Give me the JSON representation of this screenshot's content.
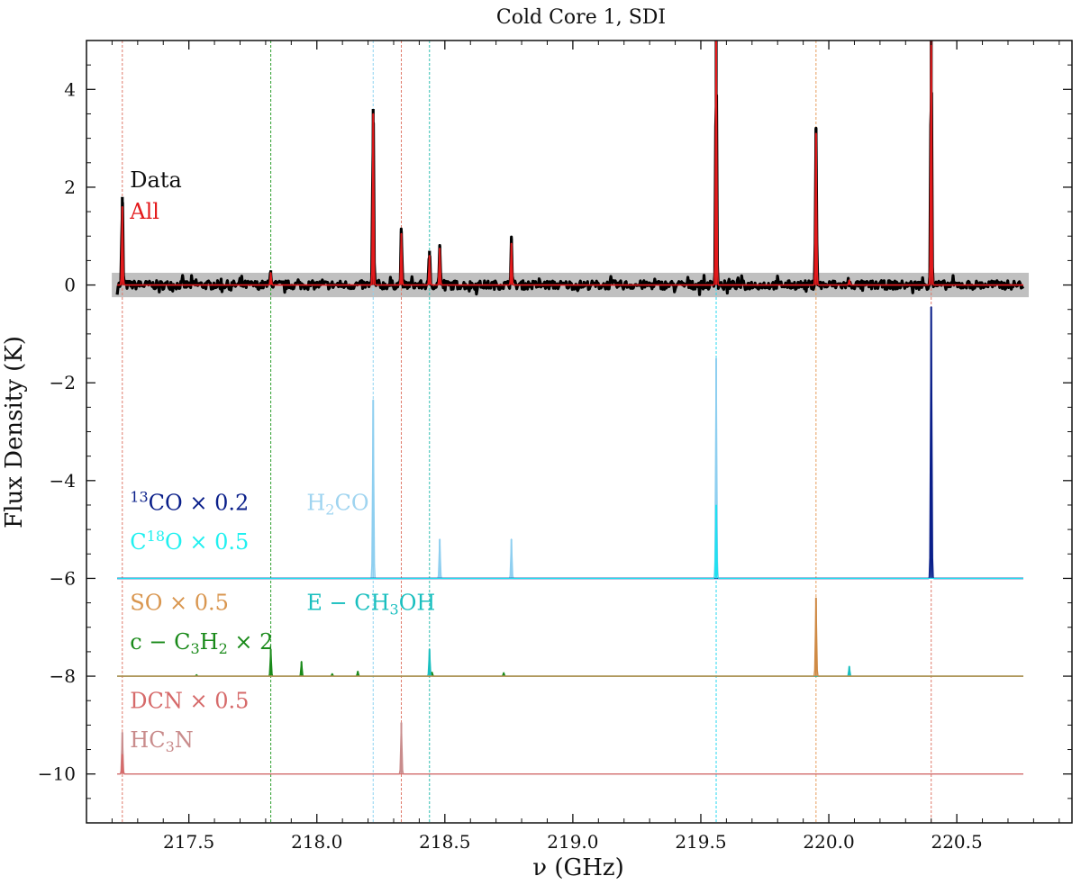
{
  "chart_data": {
    "type": "line",
    "title": "Cold Core 1, SDI",
    "xlabel": "ν (GHz)",
    "ylabel": "Flux Density (K)",
    "xlim": [
      217.1,
      220.95
    ],
    "ylim": [
      -11,
      5
    ],
    "x_ticks": [
      217.5,
      218.0,
      218.5,
      219.0,
      219.5,
      220.0,
      220.5
    ],
    "x_tick_labels": [
      "217.5",
      "218.0",
      "218.5",
      "219.0",
      "219.5",
      "220.0",
      "220.5"
    ],
    "y_ticks": [
      4,
      2,
      0,
      -2,
      -4,
      -6,
      -8,
      -10
    ],
    "y_tick_labels": [
      "4",
      "2",
      "0",
      "−2",
      "−4",
      "−6",
      "−8",
      "−10"
    ],
    "x_range_data": [
      217.22,
      220.76
    ],
    "noise_band": {
      "y": [
        -0.25,
        0.25
      ],
      "color": "#c0c0c0"
    },
    "vlines": [
      {
        "x": 217.24,
        "color": "#e07a6a"
      },
      {
        "x": 217.82,
        "color": "#2ca02c"
      },
      {
        "x": 218.22,
        "color": "#8fd3f0"
      },
      {
        "x": 218.33,
        "color": "#e07a6a"
      },
      {
        "x": 218.44,
        "color": "#2bbdb0"
      },
      {
        "x": 219.56,
        "color": "#29d9f0"
      },
      {
        "x": 219.95,
        "color": "#e8a060"
      },
      {
        "x": 220.4,
        "color": "#e07a6a"
      }
    ],
    "data_peaks": [
      {
        "x": 217.24,
        "y": 1.8
      },
      {
        "x": 217.82,
        "y": 0.3
      },
      {
        "x": 218.22,
        "y": 3.6
      },
      {
        "x": 218.33,
        "y": 1.1
      },
      {
        "x": 218.44,
        "y": 0.7
      },
      {
        "x": 218.48,
        "y": 0.8
      },
      {
        "x": 218.76,
        "y": 0.95
      },
      {
        "x": 219.56,
        "y": 5.0
      },
      {
        "x": 219.95,
        "y": 3.2
      },
      {
        "x": 220.4,
        "y": 5.0
      }
    ],
    "series": [
      {
        "name": "Data",
        "color": "#000000",
        "baseline": 0,
        "noise": 0.09,
        "width": 3.2,
        "peaks": "data_peaks"
      },
      {
        "name": "All",
        "color": "#e31a1c",
        "baseline": 0,
        "width": 1.6,
        "peaks": [
          {
            "x": 217.24,
            "y": 1.6
          },
          {
            "x": 217.82,
            "y": 0.25
          },
          {
            "x": 218.22,
            "y": 3.5
          },
          {
            "x": 218.33,
            "y": 1.05
          },
          {
            "x": 218.44,
            "y": 0.6
          },
          {
            "x": 218.48,
            "y": 0.75
          },
          {
            "x": 218.76,
            "y": 0.85
          },
          {
            "x": 219.56,
            "y": 5.0
          },
          {
            "x": 219.95,
            "y": 3.1
          },
          {
            "x": 220.08,
            "y": 0.1
          },
          {
            "x": 220.4,
            "y": 5.0
          }
        ]
      },
      {
        "name": "H2CO",
        "color": "#8fcff0",
        "baseline": -6,
        "width": 1.4,
        "peaks": [
          {
            "x": 218.22,
            "y": -2.35
          },
          {
            "x": 218.48,
            "y": -5.2
          },
          {
            "x": 218.76,
            "y": -5.2
          },
          {
            "x": 219.56,
            "y": -1.5
          },
          {
            "x": 220.4,
            "y": -3.6
          }
        ]
      },
      {
        "name": "13CO",
        "color": "#0a1f8a",
        "baseline": -6,
        "width": 1.6,
        "peaks": [
          {
            "x": 220.4,
            "y": -0.45
          }
        ]
      },
      {
        "name": "C18O",
        "color": "#20e0f0",
        "baseline": -6,
        "width": 1.2,
        "peaks": [
          {
            "x": 219.56,
            "y": -4.5
          }
        ]
      },
      {
        "name": "c-C3H2",
        "color": "#1a8a1a",
        "baseline": -8,
        "width": 1.4,
        "peaks": [
          {
            "x": 217.53,
            "y": -7.97
          },
          {
            "x": 217.82,
            "y": -7.45
          },
          {
            "x": 217.94,
            "y": -7.7
          },
          {
            "x": 218.06,
            "y": -7.95
          },
          {
            "x": 218.16,
            "y": -7.9
          },
          {
            "x": 218.45,
            "y": -7.92
          },
          {
            "x": 218.73,
            "y": -7.93
          }
        ]
      },
      {
        "name": "E-CH3OH",
        "color": "#19bfbf",
        "baseline": -8,
        "width": 1.4,
        "peaks": [
          {
            "x": 218.44,
            "y": -7.45
          },
          {
            "x": 220.08,
            "y": -7.8
          }
        ]
      },
      {
        "name": "SO",
        "color": "#cf8a45",
        "baseline": -8,
        "width": 1.4,
        "peaks": [
          {
            "x": 219.95,
            "y": -6.4
          }
        ]
      },
      {
        "name": "HC3N",
        "color": "#c98c8c",
        "baseline": -10,
        "width": 1.4,
        "peaks": [
          {
            "x": 217.24,
            "y": -9.15
          },
          {
            "x": 218.33,
            "y": -8.95
          }
        ]
      },
      {
        "name": "DCN",
        "color": "#d66a6a",
        "baseline": -10,
        "width": 1.2,
        "peaks": [
          {
            "x": 217.24,
            "y": -9.6
          }
        ]
      }
    ],
    "labels": [
      {
        "id": "data",
        "parts": [
          {
            "t": "Data"
          }
        ],
        "color": "#111111",
        "x": 217.27,
        "y": 2.0
      },
      {
        "id": "all",
        "parts": [
          {
            "t": "All"
          }
        ],
        "color": "#e31a1c",
        "x": 217.27,
        "y": 1.35
      },
      {
        "id": "13co",
        "parts": [
          {
            "t": "13",
            "s": "sup"
          },
          {
            "t": "CO × 0.2"
          }
        ],
        "color": "#0a1f8a",
        "x": 217.27,
        "y": -4.6
      },
      {
        "id": "c18o",
        "parts": [
          {
            "t": "C"
          },
          {
            "t": "18",
            "s": "sup"
          },
          {
            "t": "O × 0.5"
          }
        ],
        "color": "#20f0f0",
        "x": 217.27,
        "y": -5.4
      },
      {
        "id": "h2co",
        "parts": [
          {
            "t": "H"
          },
          {
            "t": "2",
            "s": "sub"
          },
          {
            "t": "CO"
          }
        ],
        "color": "#9fd4f0",
        "x": 217.96,
        "y": -4.6
      },
      {
        "id": "so",
        "parts": [
          {
            "t": "SO × 0.5"
          }
        ],
        "color": "#d9964f",
        "x": 217.27,
        "y": -6.65
      },
      {
        "id": "ech3oh",
        "parts": [
          {
            "t": "E − CH"
          },
          {
            "t": "3",
            "s": "sub"
          },
          {
            "t": "OH"
          }
        ],
        "color": "#19bfbf",
        "x": 217.96,
        "y": -6.65
      },
      {
        "id": "cc3h2",
        "parts": [
          {
            "t": "c − C"
          },
          {
            "t": "3",
            "s": "sub"
          },
          {
            "t": "H"
          },
          {
            "t": "2",
            "s": "sub"
          },
          {
            "t": " × 2"
          }
        ],
        "color": "#1a8a1a",
        "x": 217.27,
        "y": -7.45
      },
      {
        "id": "dcn",
        "parts": [
          {
            "t": "DCN × 0.5"
          }
        ],
        "color": "#d66a6a",
        "x": 217.27,
        "y": -8.65
      },
      {
        "id": "hc3n",
        "parts": [
          {
            "t": "HC"
          },
          {
            "t": "3",
            "s": "sub"
          },
          {
            "t": "N"
          }
        ],
        "color": "#c98c8c",
        "x": 217.27,
        "y": -9.45
      }
    ],
    "grid": false,
    "legend": "inline-left"
  }
}
